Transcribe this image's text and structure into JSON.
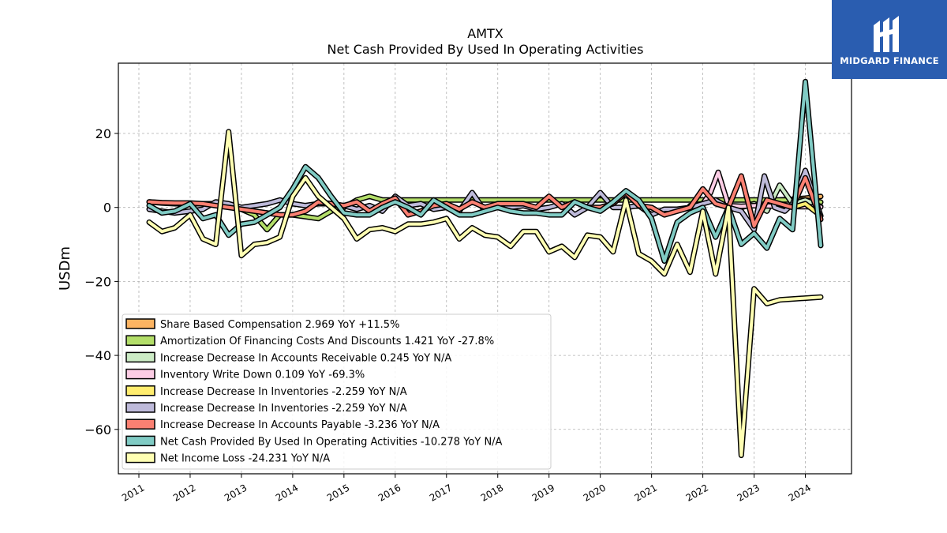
{
  "title": "AMTX",
  "subtitle": "Net Cash Provided By Used In Operating Activities",
  "logo": {
    "text": "MIDGARD FINANCE",
    "background": "#2a5db0"
  },
  "chart_data": {
    "type": "line",
    "ylabel": "USDm",
    "xlim": [
      2010.6,
      2024.9
    ],
    "ylim": [
      -72,
      39
    ],
    "yticks": [
      20,
      0,
      -20,
      -40,
      -60
    ],
    "ytick_labels": [
      "20",
      "0",
      "−20",
      "−40",
      "−60"
    ],
    "xticks": [
      2011,
      2012,
      2013,
      2014,
      2015,
      2016,
      2017,
      2018,
      2019,
      2020,
      2021,
      2022,
      2023,
      2024
    ],
    "xtick_labels": [
      "2011",
      "2012",
      "2013",
      "2014",
      "2015",
      "2016",
      "2017",
      "2018",
      "2019",
      "2020",
      "2021",
      "2022",
      "2023",
      "2024"
    ],
    "grid": true,
    "legend_position": "lower-left",
    "series": [
      {
        "name": "Share Based Compensation",
        "legend_label": "Share Based Compensation  2.969 YoY +11.5%",
        "color": "#fdb462",
        "x": [
          2023.0,
          2023.25,
          2023.5,
          2023.75,
          2024.0,
          2024.3
        ],
        "y": [
          1.0,
          1.5,
          2.0,
          2.2,
          2.5,
          2.969
        ]
      },
      {
        "name": "Amortization Of Financing Costs And Discounts",
        "legend_label": "Amortization Of Financing Costs And Discounts  1.421 YoY -27.8%",
        "color": "#b3de69",
        "x": [
          2011.2,
          2011.45,
          2011.7,
          2012.0,
          2012.5,
          2013.0,
          2013.25,
          2013.5,
          2013.75,
          2014.0,
          2014.25,
          2014.5,
          2014.75,
          2015.0,
          2015.25,
          2015.5,
          2015.75,
          2016.0,
          2016.5,
          2017.0,
          2017.5,
          2018.0,
          2018.5,
          2019.0,
          2019.5,
          2020.0,
          2020.5,
          2021.0,
          2021.5,
          2022.0,
          2022.5,
          2023.0,
          2023.5,
          2024.0,
          2024.3
        ],
        "y": [
          1.5,
          1.2,
          1.0,
          1.0,
          1.0,
          -0.5,
          -2.0,
          -6.0,
          -2.0,
          -2.0,
          -2.5,
          -3.0,
          -1.0,
          0.0,
          2.0,
          3.0,
          2.0,
          2.0,
          2.0,
          2.0,
          2.0,
          2.0,
          2.0,
          2.0,
          2.0,
          2.0,
          2.0,
          2.0,
          2.0,
          2.0,
          2.0,
          2.0,
          2.0,
          2.0,
          1.421
        ]
      },
      {
        "name": "Increase Decrease In Accounts Receivable",
        "legend_label": "Increase Decrease In Accounts Receivable  0.245 YoY N/A",
        "color": "#ccebc5",
        "x": [
          2022.75,
          2023.0,
          2023.25,
          2023.5,
          2023.75,
          2024.0,
          2024.3
        ],
        "y": [
          0.0,
          1.0,
          -1.0,
          6.0,
          1.0,
          2.0,
          0.245
        ]
      },
      {
        "name": "Inventory Write Down",
        "legend_label": "Inventory Write Down  0.109 YoY -69.3%",
        "color": "#fccde5",
        "x": [
          2021.75,
          2022.0,
          2022.15,
          2022.3,
          2022.5,
          2022.75,
          2023.0,
          2023.25,
          2023.5,
          2024.0,
          2024.3
        ],
        "y": [
          0.5,
          1.0,
          4.0,
          9.5,
          0.5,
          0.3,
          0.5,
          0.4,
          0.3,
          0.2,
          0.109
        ]
      },
      {
        "name": "Increase Decrease In Inventories",
        "legend_label": "Increase Decrease In Inventories  -2.259 YoY N/A",
        "color": "#ffed6f",
        "x": [
          2023.5,
          2023.75,
          2024.0,
          2024.3
        ],
        "y": [
          1.0,
          0.0,
          1.0,
          -2.259
        ]
      },
      {
        "name": "Increase Decrease In Inventories",
        "legend_label": "Increase Decrease In Inventories  -2.259 YoY N/A",
        "color": "#bebada",
        "x": [
          2011.2,
          2011.45,
          2011.7,
          2012.0,
          2012.25,
          2012.5,
          2012.75,
          2013.0,
          2013.25,
          2013.5,
          2013.75,
          2014.0,
          2014.25,
          2014.5,
          2014.75,
          2015.0,
          2015.25,
          2015.5,
          2015.75,
          2016.0,
          2016.25,
          2016.5,
          2016.75,
          2017.0,
          2017.25,
          2017.5,
          2017.75,
          2018.0,
          2018.25,
          2018.5,
          2018.75,
          2019.0,
          2019.25,
          2019.5,
          2019.75,
          2020.0,
          2020.25,
          2020.5,
          2020.75,
          2021.0,
          2021.25,
          2021.5,
          2021.75,
          2022.0,
          2022.25,
          2022.5,
          2022.75,
          2023.0,
          2023.2,
          2023.4,
          2023.6,
          2023.75,
          2024.0,
          2024.3
        ],
        "y": [
          -0.5,
          -1.0,
          -1.5,
          -1.0,
          -0.5,
          1.5,
          1.0,
          0.0,
          0.5,
          1.0,
          2.0,
          1.0,
          0.5,
          1.0,
          1.0,
          0.5,
          -0.5,
          0.5,
          -1.0,
          3.0,
          0.5,
          1.0,
          -0.5,
          0.0,
          -1.0,
          4.0,
          -1.0,
          1.0,
          0.0,
          0.5,
          -0.5,
          0.0,
          1.0,
          -2.0,
          0.0,
          4.0,
          0.0,
          0.0,
          0.5,
          -2.0,
          -0.5,
          -0.5,
          0.0,
          1.0,
          2.0,
          0.0,
          -1.0,
          -6.0,
          8.5,
          0.0,
          -1.0,
          1.0,
          10.0,
          -2.259
        ]
      },
      {
        "name": "Increase Decrease In Accounts Payable",
        "legend_label": "Increase Decrease In Accounts Payable  -3.236 YoY N/A",
        "color": "#fb8072",
        "x": [
          2011.2,
          2011.45,
          2011.7,
          2012.0,
          2012.25,
          2012.5,
          2012.75,
          2013.0,
          2013.25,
          2013.5,
          2013.75,
          2014.0,
          2014.25,
          2014.5,
          2014.75,
          2015.0,
          2015.25,
          2015.5,
          2015.75,
          2016.0,
          2016.25,
          2016.5,
          2016.75,
          2017.0,
          2017.25,
          2017.5,
          2017.75,
          2018.0,
          2018.25,
          2018.5,
          2018.75,
          2019.0,
          2019.25,
          2019.5,
          2019.75,
          2020.0,
          2020.25,
          2020.5,
          2020.75,
          2021.0,
          2021.25,
          2021.5,
          2021.75,
          2022.0,
          2022.25,
          2022.5,
          2022.75,
          2023.0,
          2023.25,
          2023.5,
          2023.75,
          2024.0,
          2024.3
        ],
        "y": [
          1.5,
          1.3,
          1.2,
          1.2,
          1.0,
          0.5,
          0.0,
          -0.5,
          -1.0,
          -1.5,
          -2.0,
          -2.0,
          -1.0,
          1.5,
          1.0,
          0.5,
          1.5,
          -1.0,
          1.0,
          2.5,
          -2.0,
          -1.0,
          0.5,
          1.0,
          -0.5,
          1.5,
          0.0,
          1.0,
          1.0,
          1.0,
          0.0,
          3.0,
          0.0,
          1.5,
          0.0,
          0.0,
          1.0,
          4.0,
          0.5,
          0.0,
          -2.0,
          -1.0,
          0.0,
          5.0,
          1.0,
          0.0,
          8.5,
          -5.0,
          2.0,
          1.0,
          0.0,
          8.0,
          -3.236
        ]
      },
      {
        "name": "Net Cash Provided By Used In Operating Activities",
        "legend_label": "Net Cash Provided By Used In Operating Activities  -10.278 YoY N/A",
        "color": "#80cbc4",
        "x": [
          2011.2,
          2011.45,
          2011.7,
          2012.0,
          2012.25,
          2012.5,
          2012.75,
          2013.0,
          2013.25,
          2013.5,
          2013.75,
          2014.0,
          2014.25,
          2014.5,
          2014.75,
          2015.0,
          2015.25,
          2015.5,
          2015.75,
          2016.0,
          2016.25,
          2016.5,
          2016.75,
          2017.0,
          2017.25,
          2017.5,
          2017.75,
          2018.0,
          2018.25,
          2018.5,
          2018.75,
          2019.0,
          2019.25,
          2019.5,
          2019.75,
          2020.0,
          2020.25,
          2020.5,
          2020.75,
          2021.0,
          2021.25,
          2021.5,
          2021.75,
          2022.0,
          2022.25,
          2022.5,
          2022.75,
          2023.0,
          2023.25,
          2023.5,
          2023.75,
          2024.0,
          2024.3
        ],
        "y": [
          0.5,
          -1.5,
          -1.0,
          1.0,
          -3.0,
          -2.0,
          -7.5,
          -4.5,
          -4.0,
          -2.0,
          0.0,
          5.0,
          11.0,
          8.0,
          3.0,
          -1.5,
          -2.0,
          -2.0,
          0.0,
          1.5,
          0.0,
          -2.0,
          2.0,
          0.0,
          -2.0,
          -2.0,
          -1.0,
          0.0,
          -1.0,
          -1.5,
          -1.5,
          -2.0,
          -2.0,
          1.5,
          0.0,
          -1.0,
          1.5,
          4.5,
          2.0,
          -3.0,
          -14.5,
          -4.0,
          -1.5,
          0.0,
          -8.0,
          0.0,
          -10.0,
          -7.0,
          -11.0,
          -3.0,
          -6.0,
          34.0,
          -10.278
        ]
      },
      {
        "name": "Net Income Loss",
        "legend_label": "Net Income Loss  -24.231 YoY N/A",
        "color": "#ffffb3",
        "x": [
          2011.2,
          2011.45,
          2011.7,
          2012.0,
          2012.25,
          2012.5,
          2012.75,
          2013.0,
          2013.25,
          2013.5,
          2013.75,
          2014.0,
          2014.25,
          2014.5,
          2014.75,
          2015.0,
          2015.25,
          2015.5,
          2015.75,
          2016.0,
          2016.25,
          2016.5,
          2016.75,
          2017.0,
          2017.25,
          2017.5,
          2017.75,
          2018.0,
          2018.25,
          2018.5,
          2018.75,
          2019.0,
          2019.25,
          2019.5,
          2019.75,
          2020.0,
          2020.25,
          2020.5,
          2020.75,
          2021.0,
          2021.25,
          2021.5,
          2021.75,
          2022.0,
          2022.25,
          2022.5,
          2022.75,
          2023.0,
          2023.25,
          2023.5,
          2024.3
        ],
        "y": [
          -4.0,
          -6.5,
          -5.5,
          -2.0,
          -8.5,
          -10.0,
          20.5,
          -13.0,
          -10.0,
          -9.5,
          -8.0,
          3.0,
          8.0,
          3.0,
          0.0,
          -3.0,
          -8.5,
          -6.0,
          -5.5,
          -6.5,
          -4.5,
          -4.5,
          -4.0,
          -3.0,
          -8.5,
          -5.5,
          -7.5,
          -8.0,
          -10.5,
          -6.5,
          -6.5,
          -12.0,
          -10.5,
          -13.5,
          -7.5,
          -8.0,
          -12.0,
          2.0,
          -12.5,
          -14.5,
          -18.0,
          -10.0,
          -17.5,
          -1.0,
          -18.0,
          0.0,
          -67.0,
          -22.0,
          -26.0,
          -25.0,
          -24.231
        ]
      }
    ]
  }
}
